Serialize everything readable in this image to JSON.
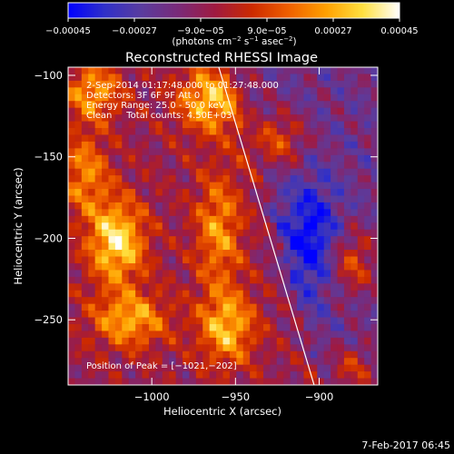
{
  "chart_data": {
    "type": "heatmap",
    "title": "Reconstructed RHESSI Image",
    "xlabel": "Heliocentric X (arcsec)",
    "ylabel": "Heliocentric Y (arcsec)",
    "xlim": [
      -1050,
      -865
    ],
    "ylim": [
      -290,
      -95
    ],
    "xticks": [
      -1000,
      -950,
      -900
    ],
    "xtick_labels": [
      "−1000",
      "−950",
      "−900"
    ],
    "yticks": [
      -100,
      -150,
      -200,
      -250
    ],
    "ytick_labels": [
      "−100",
      "−150",
      "−200",
      "−250"
    ],
    "colorbar": {
      "range": [
        -0.00045,
        0.00045
      ],
      "ticks": [
        -0.00045,
        -0.00027,
        -9e-05,
        9e-05,
        0.00027,
        0.00045
      ],
      "tick_labels": [
        "−0.00045",
        "−0.00027",
        "−9.0e−05",
        "9.0e−05",
        "0.00027",
        "0.00045"
      ],
      "unit_label_prefix": "(photons cm",
      "unit_exp1": "−2",
      "unit_mid": " s",
      "unit_exp2": "−1",
      "unit_asec": " asec",
      "unit_exp3": "−2",
      "unit_suffix": ")",
      "colormap": [
        "#0000ff",
        "#3030c8",
        "#5a3c9e",
        "#7a2a78",
        "#a01a40",
        "#cc2a00",
        "#f06000",
        "#ffa000",
        "#ffe040",
        "#ffffff"
      ]
    },
    "annotations": [
      "2-Sep-2014 01:17:48.000 to 01:27:48.000",
      "Detectors: 3F 6F 9F Att 0",
      "Energy Range: 25.0 - 50.0 keV",
      "Clean     Total counts: 4.50E+03"
    ],
    "peak_label": "Position of Peak = [−1021,−202]",
    "peak": [
      -1021,
      -202
    ],
    "limb_line": [
      [
        -960,
        -95
      ],
      [
        -903,
        -290
      ]
    ],
    "bright_regions": [
      {
        "x": -1021,
        "y": -202,
        "strength": 1.0,
        "sx": 12,
        "sy": 18
      },
      {
        "x": -1013,
        "y": -250,
        "strength": 0.75,
        "sx": 16,
        "sy": 12
      },
      {
        "x": -965,
        "y": -115,
        "strength": 0.85,
        "sx": 14,
        "sy": 14
      },
      {
        "x": -925,
        "y": -140,
        "strength": 0.6,
        "sx": 12,
        "sy": 12
      },
      {
        "x": -955,
        "y": -255,
        "strength": 0.8,
        "sx": 12,
        "sy": 16
      },
      {
        "x": -960,
        "y": -195,
        "strength": 0.65,
        "sx": 10,
        "sy": 25
      },
      {
        "x": -1035,
        "y": -110,
        "strength": 0.7,
        "sx": 12,
        "sy": 12
      },
      {
        "x": -880,
        "y": -215,
        "strength": 0.6,
        "sx": 10,
        "sy": 14
      },
      {
        "x": -1040,
        "y": -160,
        "strength": 0.6,
        "sx": 10,
        "sy": 18
      },
      {
        "x": -880,
        "y": -280,
        "strength": 0.5,
        "sx": 10,
        "sy": 10
      },
      {
        "x": -905,
        "y": -200,
        "strength": -0.6,
        "sx": 12,
        "sy": 25
      }
    ]
  },
  "footer": {
    "timestamp": "7-Feb-2017 06:45"
  }
}
